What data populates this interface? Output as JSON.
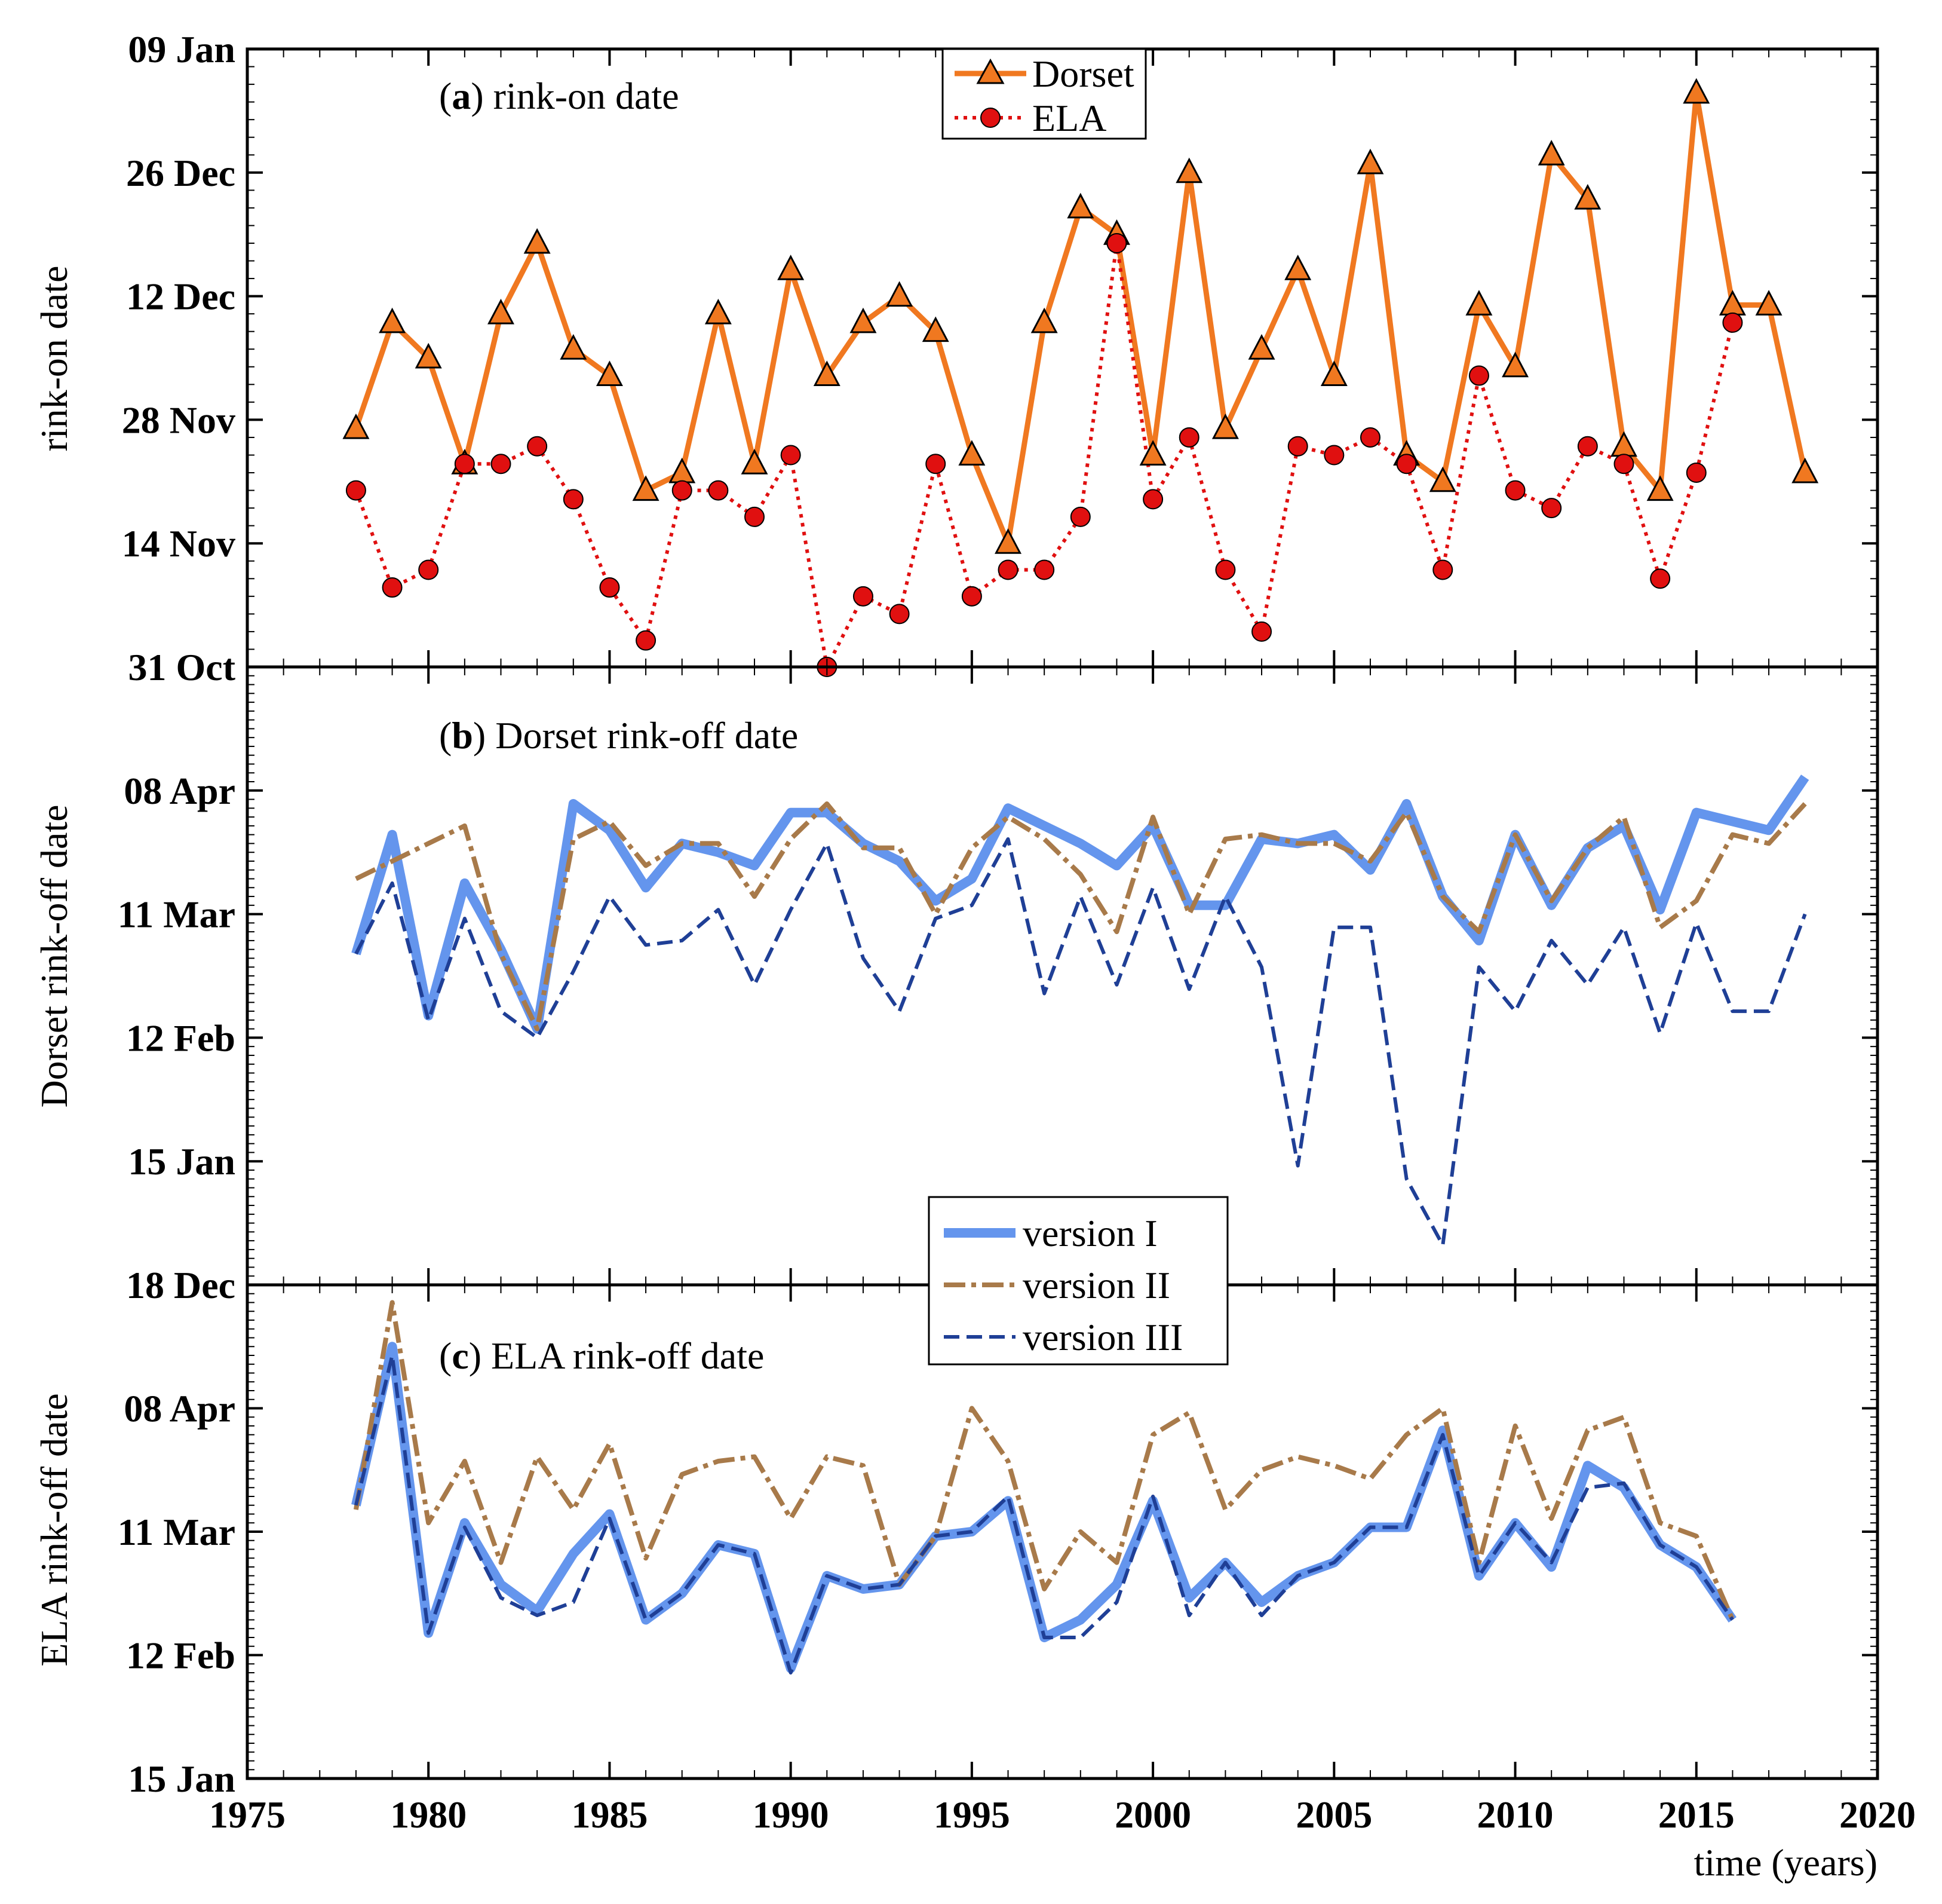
{
  "chart_data": {
    "type": "line",
    "xlabel": "time (years)",
    "x_ticks": [
      1975,
      1980,
      1985,
      1990,
      1995,
      2000,
      2005,
      2010,
      2015,
      2020
    ],
    "xlim": [
      1975,
      2020
    ],
    "colors": {
      "dorset": "#f07820",
      "ela": "#e01010",
      "version_I": "#6495ed",
      "version_II": "#a87a4a",
      "version_III": "#1f3f96"
    },
    "panels": [
      {
        "id": "a",
        "title_bold": "a",
        "title_rest": " rink-on date",
        "ylabel": "rink-on date",
        "y_ticks": [
          {
            "label": "09 Jan",
            "date": "2000-01-09"
          },
          {
            "label": "26 Dec",
            "date": "1999-12-26"
          },
          {
            "label": "12 Dec",
            "date": "1999-12-12"
          },
          {
            "label": "28 Nov",
            "date": "1999-11-28"
          },
          {
            "label": "14 Nov",
            "date": "1999-11-14"
          },
          {
            "label": "31 Oct",
            "date": "1999-10-31"
          }
        ],
        "ylim": [
          "1999-10-31",
          "2000-01-09"
        ],
        "legend": [
          "Dorset",
          "ELA"
        ],
        "series": [
          {
            "name": "Dorset",
            "style": "solid-triangle",
            "color": "#f07820",
            "x": [
              1978,
              1979,
              1980,
              1981,
              1982,
              1983,
              1984,
              1985,
              1986,
              1987,
              1988,
              1989,
              1990,
              1991,
              1992,
              1993,
              1994,
              1995,
              1996,
              1997,
              1998,
              1999,
              2000,
              2001,
              2002,
              2003,
              2004,
              2005,
              2006,
              2007,
              2008,
              2009,
              2010,
              2011,
              2012,
              2013,
              2014,
              2015,
              2016,
              2017,
              2018
            ],
            "dates": [
              "11-27",
              "12-09",
              "12-05",
              "11-23",
              "12-10",
              "12-18",
              "12-06",
              "12-03",
              "11-20",
              "11-22",
              "12-10",
              "11-23",
              "12-15",
              "12-03",
              "12-09",
              "12-12",
              "12-08",
              "11-24",
              "11-14",
              "12-09",
              "12-22",
              "12-19",
              "11-24",
              "12-26",
              "11-27",
              "12-06",
              "12-15",
              "12-03",
              "12-27",
              "11-24",
              "11-21",
              "12-11",
              "12-04",
              "12-28",
              "12-23",
              "11-25",
              "11-20",
              "01-04",
              "12-11",
              "12-11",
              "11-22"
            ]
          },
          {
            "name": "ELA",
            "style": "dotted-circle",
            "color": "#e01010",
            "x": [
              1978,
              1979,
              1980,
              1981,
              1982,
              1983,
              1984,
              1985,
              1986,
              1987,
              1988,
              1989,
              1990,
              1991,
              1992,
              1993,
              1994,
              1995,
              1996,
              1997,
              1998,
              1999,
              2000,
              2001,
              2002,
              2003,
              2004,
              2005,
              2006,
              2007,
              2008,
              2009,
              2010,
              2011,
              2012,
              2013,
              2014,
              2015,
              2016
            ],
            "dates": [
              "11-20",
              "11-09",
              "11-11",
              "11-23",
              "11-23",
              "11-25",
              "11-19",
              "11-09",
              "11-03",
              "11-20",
              "11-20",
              "11-17",
              "11-24",
              "10-31",
              "11-08",
              "11-06",
              "11-23",
              "11-08",
              "11-11",
              "11-11",
              "11-17",
              "12-18",
              "11-19",
              "11-26",
              "11-11",
              "11-04",
              "11-25",
              "11-24",
              "11-26",
              "11-23",
              "11-11",
              "12-03",
              "11-20",
              "11-18",
              "11-25",
              "11-23",
              "11-10",
              "11-22",
              "12-09"
            ]
          }
        ]
      },
      {
        "id": "b",
        "title_bold": "b",
        "title_rest": " Dorset rink-off date",
        "ylabel": "Dorset rink-off date",
        "y_ticks": [
          {
            "label": "08 Apr",
            "date": "2000-04-08"
          },
          {
            "label": "11 Mar",
            "date": "2000-03-11"
          },
          {
            "label": "12 Feb",
            "date": "2000-02-12"
          },
          {
            "label": "15 Jan",
            "date": "2000-01-15"
          },
          {
            "label": "18 Dec",
            "date": "1999-12-18"
          }
        ],
        "ylim": [
          "1999-12-18",
          "2000-05-06"
        ],
        "legend": [
          "version I",
          "version II",
          "version III"
        ],
        "x": [
          1978,
          1979,
          1980,
          1981,
          1982,
          1983,
          1984,
          1985,
          1986,
          1987,
          1988,
          1989,
          1990,
          1991,
          1992,
          1993,
          1994,
          1995,
          1996,
          1997,
          1998,
          1999,
          2000,
          2001,
          2002,
          2003,
          2004,
          2005,
          2006,
          2007,
          2008,
          2009,
          2010,
          2011,
          2012,
          2013,
          2014,
          2015,
          2016,
          2017,
          2018
        ],
        "series": [
          {
            "name": "version I",
            "style": "thick-solid",
            "color": "#6495ed",
            "dates": [
              "03-02",
              "03-29",
              "02-17",
              "03-18",
              "03-03",
              "02-14",
              "04-05",
              "03-30",
              "03-17",
              "03-27",
              "03-25",
              "03-22",
              "04-03",
              "04-03",
              "03-27",
              "03-23",
              "03-14",
              "03-19",
              "04-04",
              "03-31",
              "03-27",
              "03-22",
              "03-31",
              "03-13",
              "03-13",
              "03-28",
              "03-27",
              "03-29",
              "03-21",
              "04-05",
              "03-15",
              "03-05",
              "03-29",
              "03-13",
              "03-26",
              "03-31",
              "03-12",
              "04-03",
              "04-01",
              "03-30",
              "04-11"
            ]
          },
          {
            "name": "version II",
            "style": "dash-dot",
            "color": "#a87a4a",
            "dates": [
              "03-19",
              "03-23",
              "03-27",
              "03-31",
              "03-02",
              "02-14",
              "03-28",
              "04-01",
              "03-22",
              "03-27",
              "03-27",
              "03-15",
              "03-28",
              "04-05",
              "03-26",
              "03-26",
              "03-11",
              "03-26",
              "04-02",
              "03-28",
              "03-20",
              "03-07",
              "04-02",
              "03-11",
              "03-28",
              "03-29",
              "03-27",
              "03-27",
              "03-23",
              "04-03",
              "03-15",
              "03-07",
              "03-29",
              "03-14",
              "03-26",
              "04-02",
              "03-08",
              "03-14",
              "03-29",
              "03-27",
              "04-05"
            ]
          },
          {
            "name": "version III",
            "style": "dashed",
            "color": "#1f3f96",
            "dates": [
              "03-02",
              "03-18",
              "02-16",
              "03-10",
              "02-18",
              "02-12",
              "02-27",
              "03-15",
              "03-04",
              "03-05",
              "03-12",
              "02-24",
              "03-12",
              "03-27",
              "03-01",
              "02-18",
              "03-10",
              "03-13",
              "03-28",
              "02-22",
              "03-15",
              "02-24",
              "03-17",
              "02-23",
              "03-15",
              "02-28",
              "01-14",
              "03-08",
              "03-08",
              "01-11",
              "12-27",
              "02-28",
              "02-18",
              "03-05",
              "02-24",
              "03-08",
              "02-13",
              "03-09",
              "02-18",
              "02-18",
              "03-11"
            ]
          }
        ]
      },
      {
        "id": "c",
        "title_bold": "c",
        "title_rest": " ELA rink-off date",
        "ylabel": "ELA rink-off date",
        "y_ticks": [
          {
            "label": "08 Apr",
            "date": "2000-04-08"
          },
          {
            "label": "11 Mar",
            "date": "2000-03-11"
          },
          {
            "label": "12 Feb",
            "date": "2000-02-12"
          },
          {
            "label": "15 Jan",
            "date": "2000-01-15"
          }
        ],
        "ylim": [
          "2000-01-15",
          "2000-05-06"
        ],
        "x": [
          1978,
          1979,
          1980,
          1981,
          1982,
          1983,
          1984,
          1985,
          1986,
          1987,
          1988,
          1989,
          1990,
          1991,
          1992,
          1993,
          1994,
          1995,
          1996,
          1997,
          1998,
          1999,
          2000,
          2001,
          2002,
          2003,
          2004,
          2005,
          2006,
          2007,
          2008,
          2009,
          2010,
          2011,
          2012,
          2013,
          2014,
          2015,
          2016
        ],
        "series": [
          {
            "name": "version I",
            "style": "thick-solid",
            "color": "#6495ed",
            "dates": [
              "03-17",
              "04-22",
              "02-17",
              "03-13",
              "02-28",
              "02-22",
              "03-06",
              "03-15",
              "02-20",
              "02-26",
              "03-08",
              "03-06",
              "02-09",
              "03-01",
              "02-27",
              "02-28",
              "03-10",
              "03-11",
              "03-18",
              "02-16",
              "02-20",
              "02-28",
              "03-18",
              "02-25",
              "03-04",
              "02-24",
              "03-01",
              "03-04",
              "03-12",
              "03-12",
              "04-03",
              "03-01",
              "03-13",
              "03-03",
              "03-26",
              "03-21",
              "03-08",
              "03-03",
              "02-20"
            ]
          },
          {
            "name": "version II",
            "style": "dash-dot",
            "color": "#a87a4a",
            "dates": [
              "03-16",
              "05-02",
              "03-13",
              "03-27",
              "03-04",
              "03-28",
              "03-16",
              "03-31",
              "03-05",
              "03-24",
              "03-27",
              "03-28",
              "03-14",
              "03-28",
              "03-26",
              "02-28",
              "03-10",
              "04-08",
              "03-27",
              "02-27",
              "03-11",
              "03-04",
              "04-02",
              "04-07",
              "03-16",
              "03-25",
              "03-28",
              "03-26",
              "03-23",
              "04-02",
              "04-08",
              "03-04",
              "04-04",
              "03-14",
              "04-03",
              "04-06",
              "03-13",
              "03-10",
              "02-20"
            ]
          },
          {
            "name": "version III",
            "style": "dashed",
            "color": "#1f3f96",
            "dates": [
              "03-17",
              "04-20",
              "02-17",
              "03-12",
              "02-25",
              "02-21",
              "02-24",
              "03-14",
              "02-20",
              "02-26",
              "03-08",
              "03-06",
              "02-08",
              "03-01",
              "02-27",
              "02-28",
              "03-10",
              "03-11",
              "03-19",
              "02-16",
              "02-16",
              "02-24",
              "03-19",
              "02-21",
              "03-04",
              "02-21",
              "03-01",
              "03-04",
              "03-12",
              "03-12",
              "04-02",
              "03-01",
              "03-13",
              "03-04",
              "03-21",
              "03-22",
              "03-08",
              "03-03",
              "02-20"
            ]
          }
        ]
      }
    ]
  }
}
